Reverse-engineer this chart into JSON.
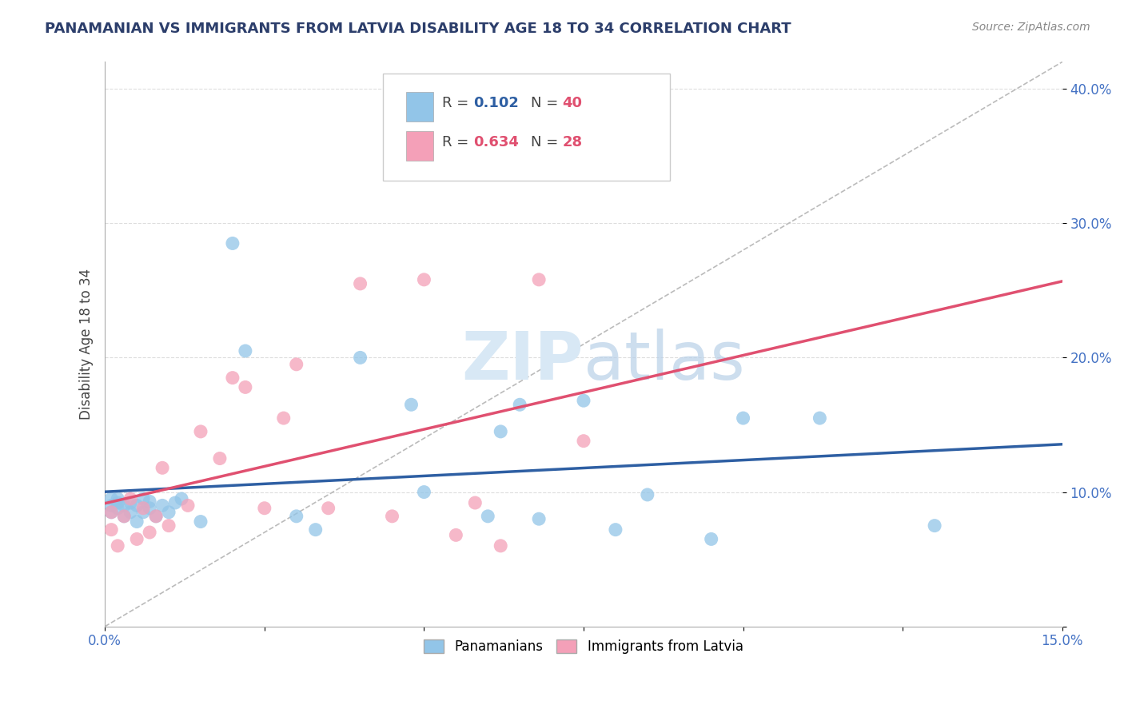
{
  "title": "PANAMANIAN VS IMMIGRANTS FROM LATVIA DISABILITY AGE 18 TO 34 CORRELATION CHART",
  "source": "Source: ZipAtlas.com",
  "ylabel": "Disability Age 18 to 34",
  "xlim": [
    0.0,
    0.15
  ],
  "ylim": [
    0.0,
    0.42
  ],
  "y_ticks": [
    0.0,
    0.1,
    0.2,
    0.3,
    0.4
  ],
  "y_tick_labels": [
    "",
    "10.0%",
    "20.0%",
    "30.0%",
    "40.0%"
  ],
  "r_panamanian": 0.102,
  "n_panamanian": 40,
  "r_latvia": 0.634,
  "n_latvia": 28,
  "panamanian_color": "#92C5E8",
  "latvia_color": "#F4A0B8",
  "panamanian_line_color": "#2E5FA3",
  "latvia_line_color": "#E05070",
  "diagonal_line_color": "#BBBBBB",
  "background_color": "#FFFFFF",
  "grid_color": "#DDDDDD",
  "legend_labels": [
    "Panamanians",
    "Immigrants from Latvia"
  ],
  "watermark_color": "#D8E8F5",
  "panamanian_x": [
    0.001,
    0.001,
    0.001,
    0.002,
    0.002,
    0.002,
    0.003,
    0.003,
    0.004,
    0.004,
    0.005,
    0.005,
    0.006,
    0.006,
    0.007,
    0.007,
    0.008,
    0.009,
    0.01,
    0.011,
    0.012,
    0.015,
    0.02,
    0.022,
    0.03,
    0.033,
    0.04,
    0.048,
    0.05,
    0.06,
    0.062,
    0.065,
    0.068,
    0.075,
    0.08,
    0.085,
    0.095,
    0.1,
    0.112,
    0.13
  ],
  "panamanian_y": [
    0.09,
    0.085,
    0.095,
    0.088,
    0.092,
    0.095,
    0.082,
    0.09,
    0.085,
    0.092,
    0.078,
    0.09,
    0.085,
    0.095,
    0.088,
    0.093,
    0.082,
    0.09,
    0.085,
    0.092,
    0.095,
    0.078,
    0.285,
    0.205,
    0.082,
    0.072,
    0.2,
    0.165,
    0.1,
    0.082,
    0.145,
    0.165,
    0.08,
    0.168,
    0.072,
    0.098,
    0.065,
    0.155,
    0.155,
    0.075
  ],
  "latvia_x": [
    0.001,
    0.001,
    0.002,
    0.003,
    0.004,
    0.005,
    0.006,
    0.007,
    0.008,
    0.009,
    0.01,
    0.013,
    0.015,
    0.018,
    0.02,
    0.022,
    0.025,
    0.028,
    0.03,
    0.035,
    0.04,
    0.045,
    0.05,
    0.055,
    0.058,
    0.062,
    0.068,
    0.075
  ],
  "latvia_y": [
    0.085,
    0.072,
    0.06,
    0.082,
    0.095,
    0.065,
    0.088,
    0.07,
    0.082,
    0.118,
    0.075,
    0.09,
    0.145,
    0.125,
    0.185,
    0.178,
    0.088,
    0.155,
    0.195,
    0.088,
    0.255,
    0.082,
    0.258,
    0.068,
    0.092,
    0.06,
    0.258,
    0.138
  ]
}
